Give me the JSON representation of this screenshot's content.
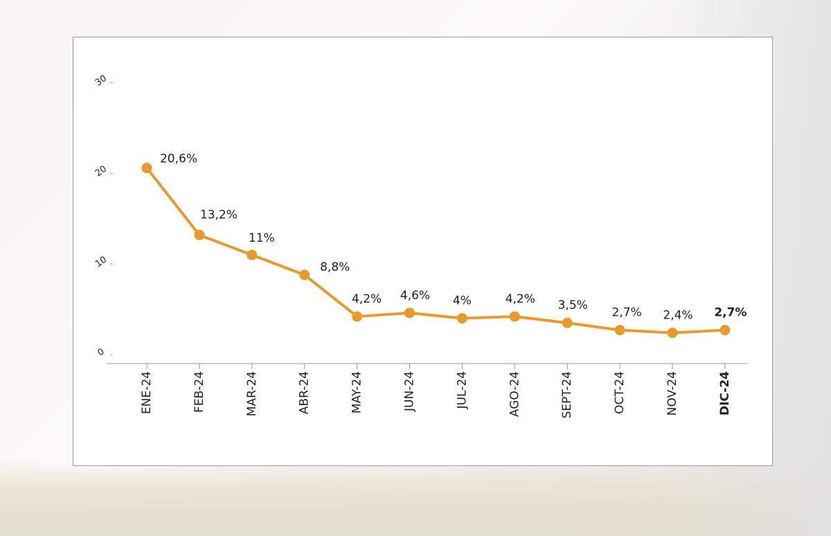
{
  "chart_data": {
    "type": "line",
    "categories": [
      "ENE-24",
      "FEB-24",
      "MAR-24",
      "ABR-24",
      "MAY-24",
      "JUN-24",
      "JUL-24",
      "AGO-24",
      "SEPT-24",
      "OCT-24",
      "NOV-24",
      "DIC-24"
    ],
    "series": [
      {
        "values": [
          20.6,
          13.2,
          11,
          8.8,
          4.2,
          4.6,
          4,
          4.2,
          3.5,
          2.7,
          2.4,
          2.7
        ]
      }
    ],
    "data_labels": [
      "20,6%",
      "13,2%",
      "11%",
      "8,8%",
      "4,2%",
      "4,6%",
      "4%",
      "4,2%",
      "3,5%",
      "2,7%",
      "2,4%",
      "2,7%"
    ],
    "highlight_index": 11,
    "y_ticks": [
      0,
      10,
      20,
      30
    ],
    "ylim": [
      0,
      30
    ],
    "grid": false,
    "legend": "none",
    "title": "",
    "xlabel": "",
    "ylabel": "",
    "colors": {
      "line": "#e89a2c",
      "highlight_label": "#e8a33a",
      "text": "#222222",
      "axis": "#9a9a9a"
    }
  }
}
